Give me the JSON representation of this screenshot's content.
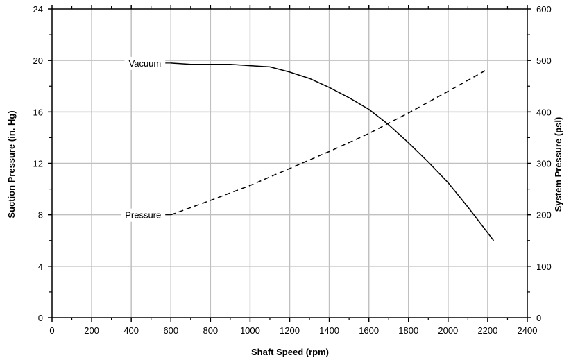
{
  "chart_data": {
    "type": "line",
    "title": "",
    "xlabel": "Shaft Speed (rpm)",
    "ylabel_left": "Suction Pressure (in. Hg)",
    "ylabel_right": "System Pressure  (psi)",
    "xlim": [
      0,
      2400
    ],
    "ylim_left": [
      0,
      24
    ],
    "ylim_right": [
      0,
      600
    ],
    "grid": true,
    "x_ticks": [
      "0",
      "200",
      "400",
      "600",
      "800",
      "1000",
      "1200",
      "1400",
      "1600",
      "1800",
      "2000",
      "2200",
      "2400"
    ],
    "y_left_ticks": [
      "0",
      "4",
      "8",
      "12",
      "16",
      "20",
      "24"
    ],
    "y_right_ticks": [
      "0",
      "100",
      "200",
      "300",
      "400",
      "500",
      "600"
    ],
    "series": [
      {
        "name": "Vacuum",
        "axis": "left",
        "style": "solid",
        "color": "#000000",
        "x": [
          600,
          700,
          800,
          900,
          1000,
          1100,
          1200,
          1300,
          1400,
          1500,
          1600,
          1700,
          1800,
          1900,
          2000,
          2100,
          2230
        ],
        "y": [
          19.8,
          19.7,
          19.7,
          19.7,
          19.6,
          19.5,
          19.1,
          18.6,
          17.9,
          17.1,
          16.2,
          15.0,
          13.6,
          12.1,
          10.5,
          8.6,
          6.0
        ]
      },
      {
        "name": "Pressure",
        "axis": "right",
        "style": "dashed",
        "color": "#000000",
        "x": [
          600,
          800,
          1000,
          1200,
          1400,
          1600,
          1800,
          2000,
          2200
        ],
        "y": [
          200,
          228,
          257,
          290,
          323,
          358,
          398,
          440,
          483
        ]
      }
    ]
  }
}
